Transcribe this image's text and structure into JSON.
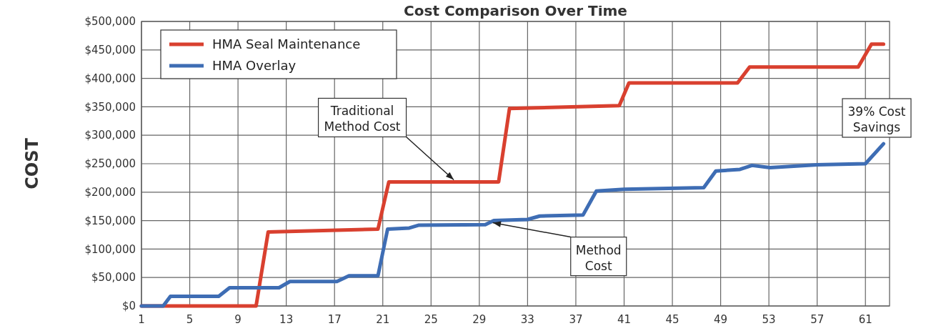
{
  "chart_data": {
    "type": "line",
    "title": "Cost Comparison Over Time",
    "ylabel": "COST",
    "xlim": [
      1,
      63
    ],
    "xticks": [
      1,
      5,
      9,
      13,
      17,
      21,
      25,
      29,
      33,
      37,
      41,
      45,
      49,
      53,
      57,
      61
    ],
    "ylim": [
      0,
      500000
    ],
    "yticks": [
      {
        "value": 0,
        "label": "$0"
      },
      {
        "value": 50000,
        "label": "$50,000"
      },
      {
        "value": 100000,
        "label": "$100,000"
      },
      {
        "value": 150000,
        "label": "$150,000"
      },
      {
        "value": 200000,
        "label": "$200,000"
      },
      {
        "value": 250000,
        "label": "$250,000"
      },
      {
        "value": 300000,
        "label": "$300,000"
      },
      {
        "value": 350000,
        "label": "$350,000"
      },
      {
        "value": 400000,
        "label": "$400,000"
      },
      {
        "value": 450000,
        "label": "$450,000"
      },
      {
        "value": 500000,
        "label": "$500,000"
      }
    ],
    "grid": true,
    "legend": "top left",
    "marker": "none",
    "line_style": "solid",
    "series": [
      {
        "name": "HMA Seal Maintenance",
        "color": "#d9402f",
        "x": [
          1,
          10.5,
          11.5,
          20.6,
          21.5,
          30.6,
          31.5,
          40.6,
          41.4,
          50.4,
          51.4,
          60.4,
          61.5,
          62.5
        ],
        "values": [
          0,
          0,
          130000,
          135000,
          218000,
          218000,
          347000,
          352000,
          392000,
          392000,
          420000,
          420000,
          460000,
          460000
        ]
      },
      {
        "name": "HMA Overlay",
        "color": "#3e6db4",
        "x": [
          1,
          2.8,
          3.4,
          7.4,
          8.3,
          12.4,
          13.3,
          17.2,
          18.2,
          20.6,
          21.4,
          23.2,
          24,
          29.5,
          30.2,
          33,
          34,
          37.6,
          38.7,
          41,
          47.6,
          48.6,
          50.6,
          51.6,
          53.1,
          57,
          61,
          62.5
        ],
        "values": [
          0,
          0,
          17000,
          17000,
          32000,
          32000,
          43000,
          43000,
          53000,
          53000,
          135000,
          137000,
          142000,
          143000,
          150000,
          152000,
          158000,
          160000,
          202000,
          205000,
          208000,
          237000,
          240000,
          247000,
          243000,
          248000,
          250000,
          285000
        ]
      }
    ],
    "annotations": [
      {
        "text": "Traditional Method Cost",
        "x": 27,
        "y": 218000
      },
      {
        "text": "Method Cost",
        "x": 30,
        "y": 150000
      },
      "39% Cost Savings"
    ]
  }
}
